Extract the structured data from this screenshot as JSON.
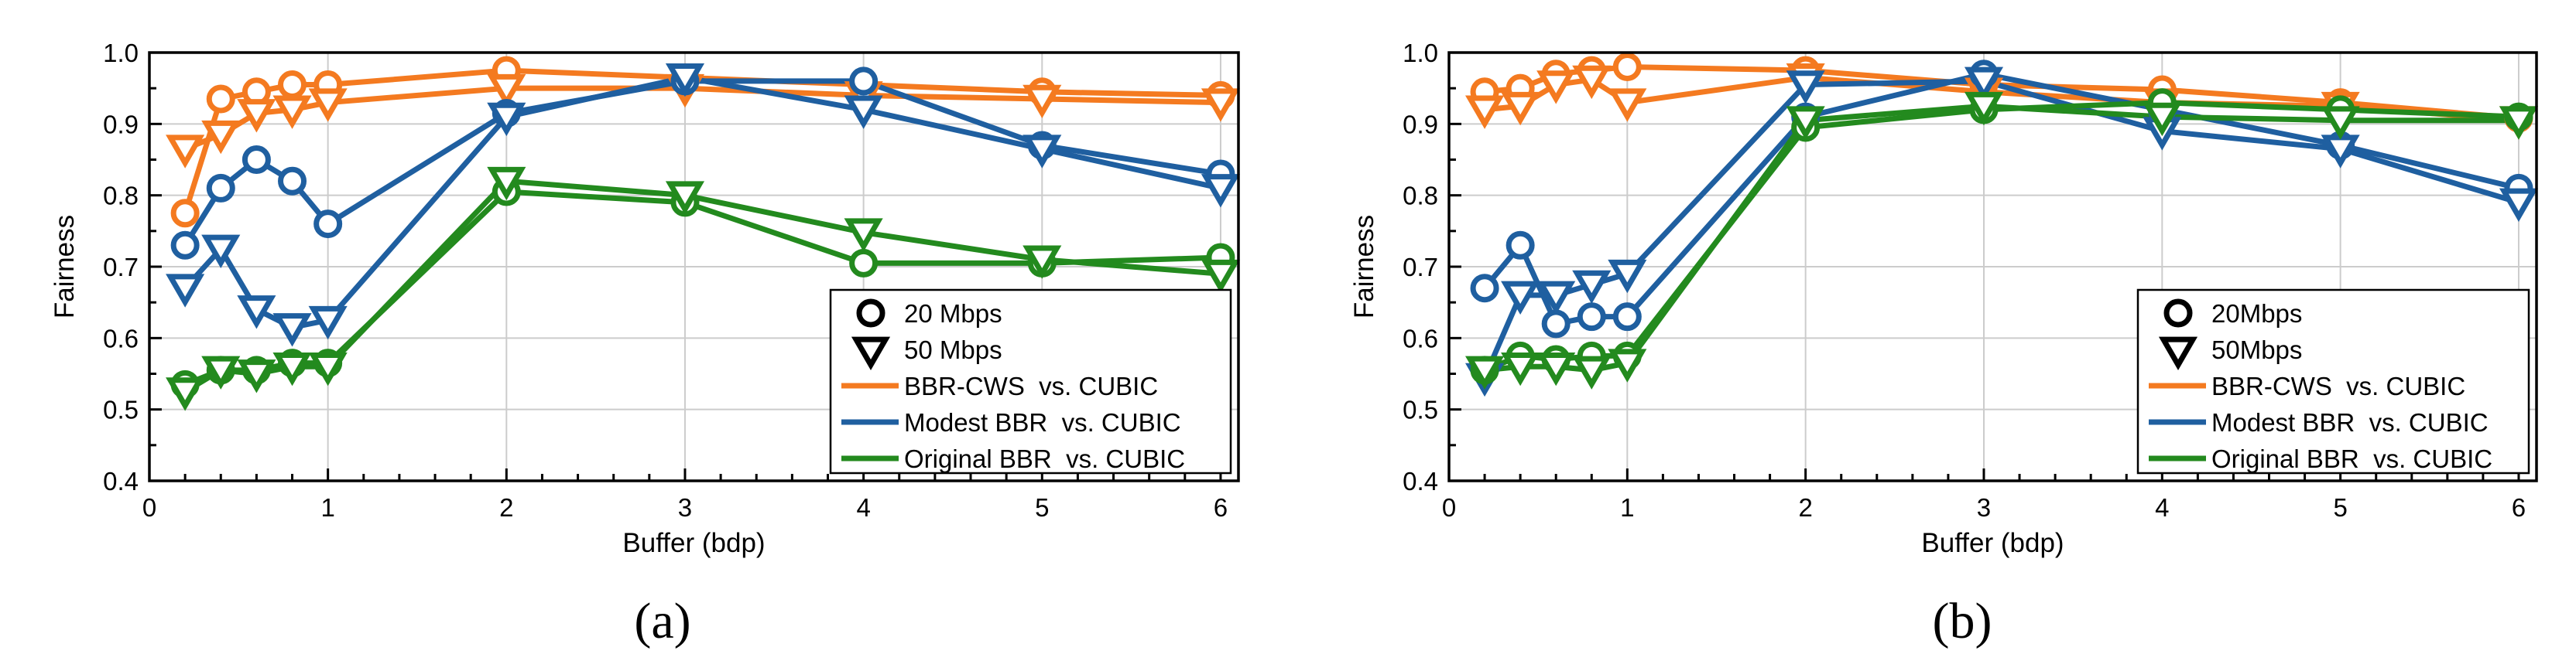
{
  "colors": {
    "bbr_cws": "#f47a20",
    "modest": "#1f5fa0",
    "original": "#238a1e",
    "grid": "#cccccc",
    "axis": "#000000"
  },
  "chart_data": [
    {
      "type": "line",
      "panel_label": "(a)",
      "xlabel": "Buffer (bdp)",
      "ylabel": "Fairness",
      "xlim": [
        0,
        6.1
      ],
      "ylim": [
        0.4,
        1.0
      ],
      "xticks": [
        "0",
        "1",
        "2",
        "3",
        "4",
        "5",
        "6"
      ],
      "yticks": [
        "0.4",
        "0.5",
        "0.6",
        "0.7",
        "0.8",
        "0.9",
        "1.0"
      ],
      "grid": true,
      "legend_position": "bottom-right",
      "legend": {
        "marker_entries": [
          "20 Mbps",
          "50 Mbps"
        ],
        "line_entries": [
          "BBR-CWS  vs. CUBIC",
          "Modest BBR  vs. CUBIC",
          "Original BBR  vs. CUBIC"
        ]
      },
      "x": [
        0.2,
        0.4,
        0.6,
        0.8,
        1,
        2,
        3,
        4,
        5,
        6
      ],
      "series": [
        {
          "name": "BBR-CWS vs. CUBIC 20 Mbps",
          "color": "bbr_cws",
          "marker": "circle",
          "values": [
            0.775,
            0.935,
            0.945,
            0.955,
            0.955,
            0.975,
            0.965,
            0.955,
            0.945,
            0.94
          ]
        },
        {
          "name": "BBR-CWS vs. CUBIC 50 Mbps",
          "color": "bbr_cws",
          "marker": "triangle",
          "values": [
            0.865,
            0.885,
            0.915,
            0.92,
            0.93,
            0.95,
            0.95,
            0.94,
            0.935,
            0.93
          ]
        },
        {
          "name": "Modest BBR vs. CUBIC 20 Mbps",
          "color": "modest",
          "marker": "circle",
          "values": [
            0.73,
            0.81,
            0.85,
            0.82,
            0.76,
            0.915,
            0.96,
            0.96,
            0.87,
            0.83
          ]
        },
        {
          "name": "Modest BBR vs. CUBIC 50 Mbps",
          "color": "modest",
          "marker": "triangle",
          "values": [
            0.67,
            0.725,
            0.64,
            0.615,
            0.625,
            0.91,
            0.965,
            0.92,
            0.865,
            0.81
          ]
        },
        {
          "name": "Original BBR vs. CUBIC 20 Mbps",
          "color": "original",
          "marker": "circle",
          "values": [
            0.535,
            0.555,
            0.555,
            0.565,
            0.565,
            0.805,
            0.79,
            0.705,
            0.705,
            0.713
          ]
        },
        {
          "name": "Original BBR vs. CUBIC 50 Mbps",
          "color": "original",
          "marker": "triangle",
          "values": [
            0.525,
            0.555,
            0.55,
            0.56,
            0.56,
            0.82,
            0.8,
            0.748,
            0.71,
            0.69
          ]
        }
      ]
    },
    {
      "type": "line",
      "panel_label": "(b)",
      "xlabel": "Buffer (bdp)",
      "ylabel": "Fairness",
      "xlim": [
        0,
        6.1
      ],
      "ylim": [
        0.4,
        1.0
      ],
      "xticks": [
        "0",
        "1",
        "2",
        "3",
        "4",
        "5",
        "6"
      ],
      "yticks": [
        "0.4",
        "0.5",
        "0.6",
        "0.7",
        "0.8",
        "0.9",
        "1.0"
      ],
      "grid": true,
      "legend_position": "bottom-right",
      "legend": {
        "marker_entries": [
          "20Mbps",
          "50Mbps"
        ],
        "line_entries": [
          "BBR-CWS  vs. CUBIC",
          "Modest BBR  vs. CUBIC",
          "Original BBR  vs. CUBIC"
        ]
      },
      "x": [
        0.2,
        0.4,
        0.6,
        0.8,
        1,
        2,
        3,
        4,
        5,
        6
      ],
      "series": [
        {
          "name": "BBR-CWS vs. CUBIC 20 Mbps",
          "color": "bbr_cws",
          "marker": "circle",
          "values": [
            0.945,
            0.95,
            0.97,
            0.975,
            0.98,
            0.975,
            0.955,
            0.948,
            0.93,
            0.908
          ]
        },
        {
          "name": "BBR-CWS vs. CUBIC 50 Mbps",
          "color": "bbr_cws",
          "marker": "triangle",
          "values": [
            0.92,
            0.925,
            0.955,
            0.962,
            0.93,
            0.965,
            0.945,
            0.93,
            0.925,
            0.905
          ]
        },
        {
          "name": "Modest BBR vs. CUBIC 20 Mbps",
          "color": "modest",
          "marker": "circle",
          "values": [
            0.67,
            0.73,
            0.62,
            0.63,
            0.63,
            0.91,
            0.97,
            0.92,
            0.87,
            0.81
          ]
        },
        {
          "name": "Modest BBR vs. CUBIC 50 Mbps",
          "color": "modest",
          "marker": "triangle",
          "values": [
            0.545,
            0.66,
            0.66,
            0.675,
            0.69,
            0.955,
            0.96,
            0.89,
            0.865,
            0.79
          ]
        },
        {
          "name": "Original BBR vs. CUBIC 20 Mbps",
          "color": "original",
          "marker": "circle",
          "values": [
            0.555,
            0.575,
            0.57,
            0.575,
            0.575,
            0.895,
            0.92,
            0.93,
            0.92,
            0.91
          ]
        },
        {
          "name": "Original BBR vs. CUBIC 50 Mbps",
          "color": "original",
          "marker": "triangle",
          "values": [
            0.555,
            0.56,
            0.56,
            0.555,
            0.565,
            0.905,
            0.925,
            0.91,
            0.905,
            0.905
          ]
        }
      ]
    }
  ]
}
